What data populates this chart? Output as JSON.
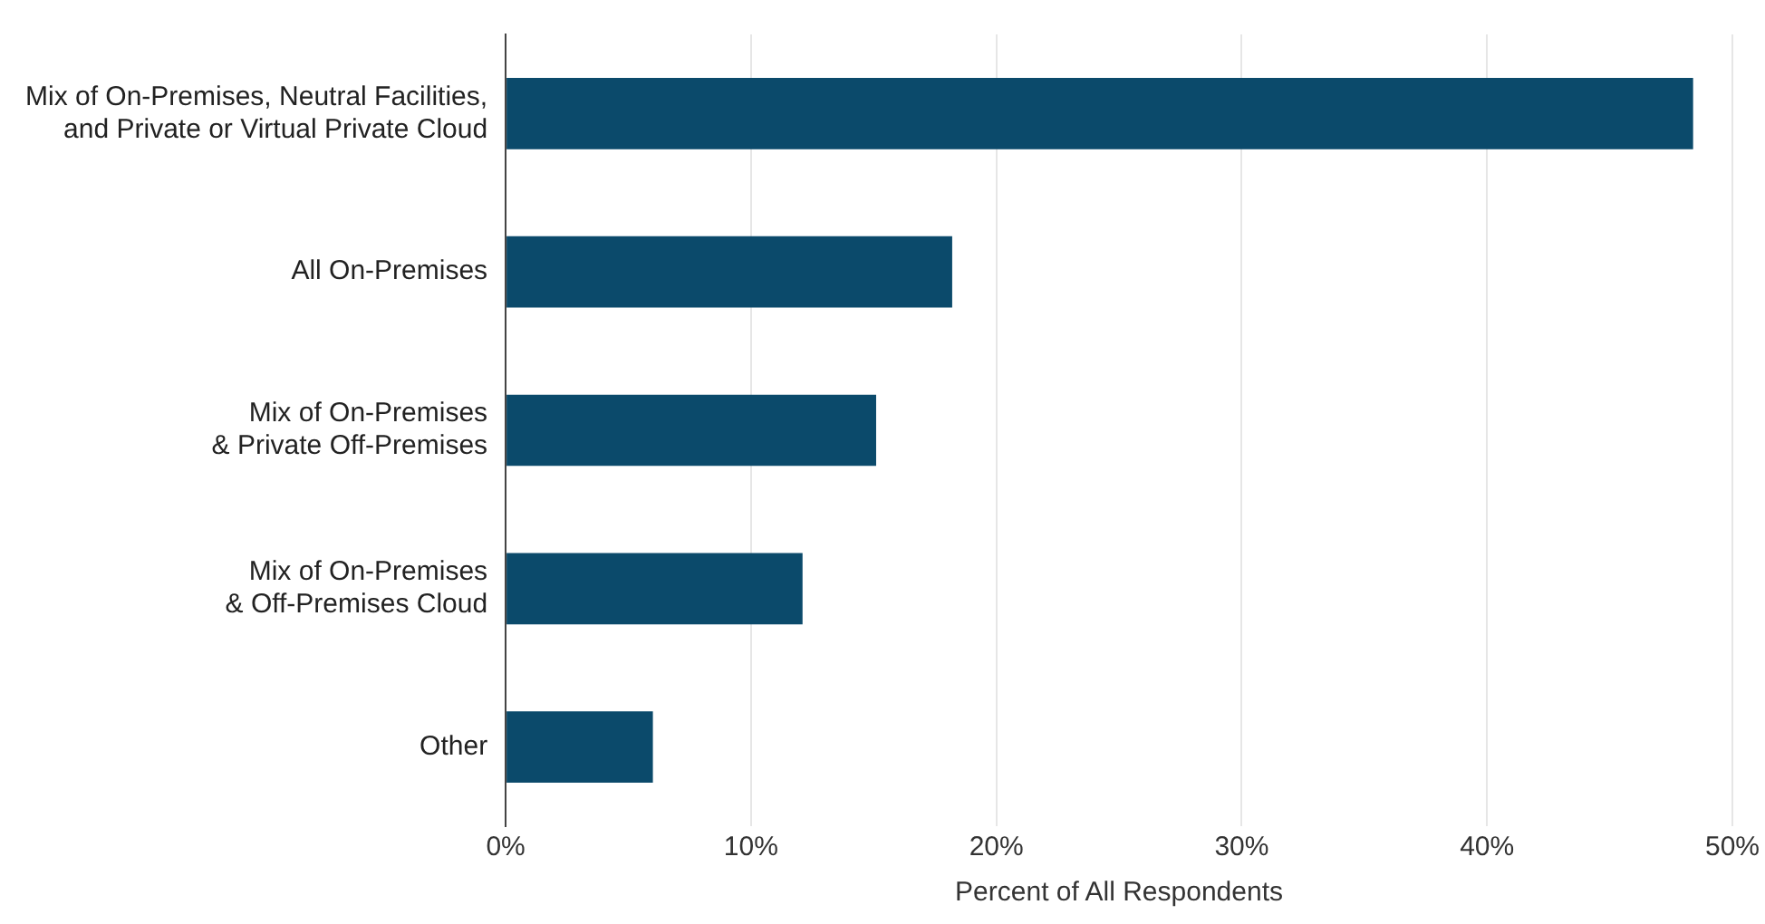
{
  "chart_data": {
    "type": "bar",
    "orientation": "horizontal",
    "categories": [
      "Mix of On-Premises, Neutral Facilities,\nand Private or Virtual Private Cloud",
      "All On-Premises",
      "Mix of On-Premises\n& Private Off-Premises",
      "Mix of On-Premises\n& Off-Premises Cloud",
      "Other"
    ],
    "values": [
      48.4,
      18.2,
      15.1,
      12.1,
      6.0
    ],
    "color": "#0b4a6b",
    "xlim": [
      0,
      50
    ],
    "xticks": [
      {
        "value": 0,
        "label": "0%"
      },
      {
        "value": 10,
        "label": "10%"
      },
      {
        "value": 20,
        "label": "20%"
      },
      {
        "value": 30,
        "label": "30%"
      },
      {
        "value": 40,
        "label": "40%"
      },
      {
        "value": 50,
        "label": "50%"
      }
    ],
    "xlabel": "Percent of All Respondents",
    "grid": "x",
    "legend": false
  }
}
